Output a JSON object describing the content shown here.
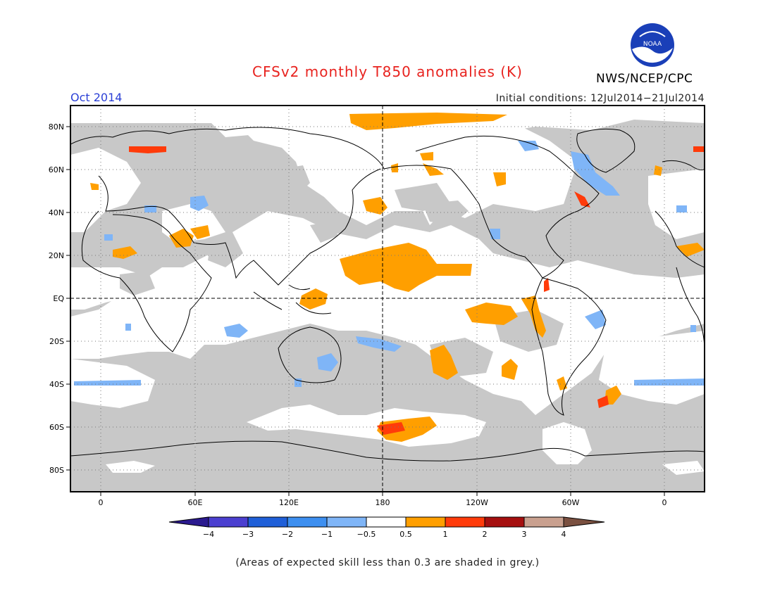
{
  "header": {
    "title": "CFSv2 monthly T850 anomalies (K)",
    "agency": "NWS/NCEP/CPC",
    "month": "Oct 2014",
    "initial_conditions": "Initial conditions: 12Jul2014−21Jul2014",
    "logo_text": "NOAA"
  },
  "map": {
    "lat_labels": [
      "80N",
      "60N",
      "40N",
      "20N",
      "EQ",
      "20S",
      "40S",
      "60S",
      "80S"
    ],
    "lon_labels": [
      "0",
      "60E",
      "120E",
      "180",
      "120W",
      "60W",
      "0"
    ]
  },
  "colorbar": {
    "labels": [
      "−4",
      "−3",
      "−2",
      "−1",
      "−0.5",
      "0.5",
      "1",
      "2",
      "3",
      "4"
    ],
    "colors": [
      "#2b1a8f",
      "#4b3fd0",
      "#1f5fd8",
      "#3d8ff0",
      "#7fb5f7",
      "#ffffff",
      "#ff9f00",
      "#ff3b0a",
      "#a50f0f",
      "#c9a08f",
      "#7a5040"
    ]
  },
  "footnote": "(Areas of expected skill less than 0.3 are shaded in grey.)",
  "colors": {
    "grey_mask": "#c8c8c8",
    "title": "#e8231f",
    "month": "#2a3fd6"
  }
}
